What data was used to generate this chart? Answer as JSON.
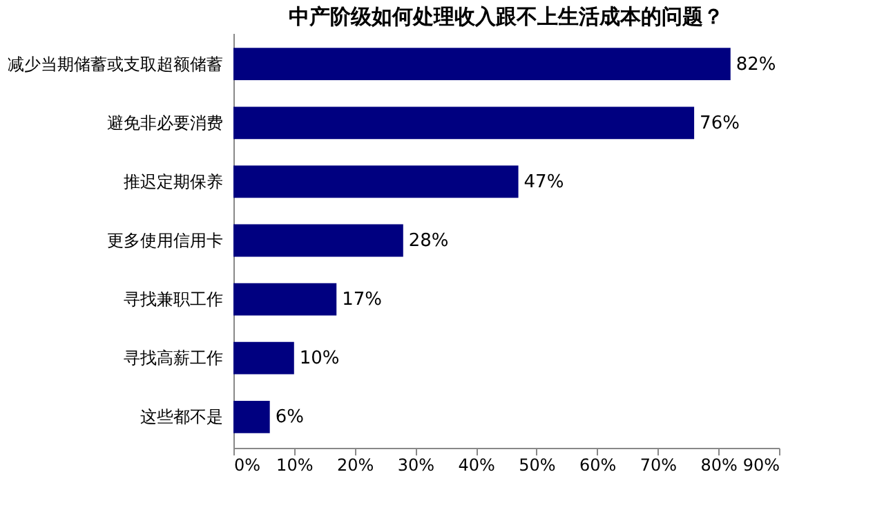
{
  "chart_data": {
    "type": "bar",
    "orientation": "horizontal",
    "title": "中产阶级如何处理收入跟不上生活成本的问题？",
    "categories": [
      "减少当期储蓄或支取超额储蓄",
      "避免非必要消费",
      "推迟定期保养",
      "更多使用信用卡",
      "寻找兼职工作",
      "寻找高薪工作",
      "这些都不是"
    ],
    "values": [
      82,
      76,
      47,
      28,
      17,
      10,
      6
    ],
    "value_labels": [
      "82%",
      "76%",
      "47%",
      "28%",
      "17%",
      "10%",
      "6%"
    ],
    "color": "#000080",
    "xlim": [
      0,
      90
    ],
    "xticks": [
      {
        "value": 0,
        "label": "0%"
      },
      {
        "value": 10,
        "label": "10%"
      },
      {
        "value": 20,
        "label": "20%"
      },
      {
        "value": 30,
        "label": "30%"
      },
      {
        "value": 40,
        "label": "40%"
      },
      {
        "value": 50,
        "label": "50%"
      },
      {
        "value": 60,
        "label": "60%"
      },
      {
        "value": 70,
        "label": "70%"
      },
      {
        "value": 80,
        "label": "80%"
      },
      {
        "value": 90,
        "label": "90%"
      }
    ],
    "grid": false
  }
}
